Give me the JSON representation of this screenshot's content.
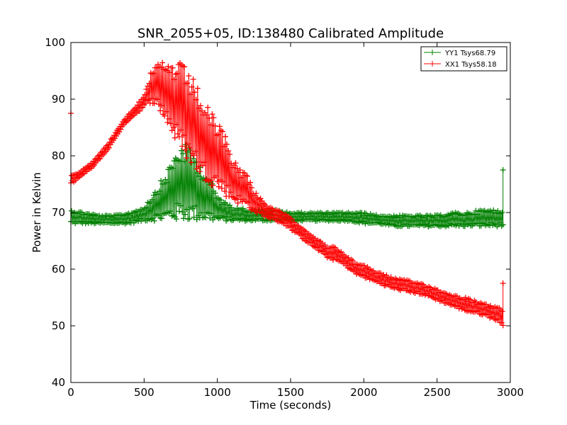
{
  "chart_data": {
    "type": "line",
    "title": "SNR_2055+05, ID:138480 Calibrated Amplitude",
    "xlabel": "Time (seconds)",
    "ylabel": "Power in Kelvin",
    "xlim": [
      0,
      3000
    ],
    "ylim": [
      40,
      100
    ],
    "xticks": [
      0,
      500,
      1000,
      1500,
      2000,
      2500,
      3000
    ],
    "yticks": [
      40,
      50,
      60,
      70,
      80,
      90,
      100
    ],
    "grid": false,
    "legend_position": "top-right",
    "marker": "plus",
    "series": [
      {
        "name": "YY1 Tsys68.79",
        "color": "#008000",
        "envelope_x": [
          0,
          100,
          200,
          300,
          400,
          500,
          550,
          600,
          650,
          700,
          750,
          800,
          850,
          900,
          950,
          1000,
          1050,
          1100,
          1150,
          1200,
          1300,
          1400,
          1500,
          1600,
          1700,
          1800,
          1900,
          2000,
          2100,
          2200,
          2300,
          2400,
          2500,
          2600,
          2700,
          2800,
          2900,
          2950
        ],
        "envelope_low": [
          68,
          68,
          68,
          68,
          68,
          68.5,
          68.5,
          68.5,
          68.5,
          68.5,
          68.5,
          68.5,
          68.5,
          68.5,
          68.5,
          68.5,
          68.5,
          68.5,
          68.5,
          68.5,
          68.5,
          68.5,
          68.5,
          68.5,
          68.5,
          68.5,
          68.5,
          68,
          68,
          67.5,
          67.5,
          67.5,
          67.5,
          67.5,
          67.5,
          67.5,
          67.5,
          67.5
        ],
        "envelope_high": [
          70.5,
          70,
          69.5,
          69.5,
          70,
          71,
          73,
          75,
          77,
          80,
          82,
          82,
          80,
          78,
          76,
          73,
          72,
          71,
          71,
          70.5,
          70.5,
          70.5,
          70,
          70,
          70,
          70,
          70,
          70,
          69.5,
          69.5,
          69.5,
          69.5,
          69.5,
          70,
          70,
          70.5,
          70.5,
          70.5
        ],
        "end_spike": [
          2950,
          77.5
        ]
      },
      {
        "name": "XX1 Tsys58.18",
        "color": "#ff0000",
        "envelope_x": [
          0,
          50,
          100,
          150,
          200,
          250,
          300,
          350,
          400,
          450,
          500,
          550,
          600,
          650,
          700,
          750,
          800,
          850,
          900,
          950,
          1000,
          1050,
          1100,
          1150,
          1200,
          1250,
          1300,
          1350,
          1400,
          1450,
          1500,
          1550,
          1600,
          1650,
          1700,
          1750,
          1800,
          1850,
          1900,
          1950,
          2000,
          2050,
          2100,
          2150,
          2200,
          2300,
          2400,
          2500,
          2600,
          2700,
          2800,
          2900,
          2950
        ],
        "envelope_low": [
          75,
          76,
          77,
          78,
          79.5,
          81,
          83,
          85,
          86.5,
          87.5,
          88.5,
          89.5,
          88,
          86,
          83,
          81,
          79,
          77.5,
          76,
          75,
          74,
          73,
          72,
          71.5,
          71,
          70,
          69.5,
          69,
          68.5,
          68,
          67,
          66,
          65,
          64,
          63,
          62,
          61.5,
          61,
          60,
          59,
          58.5,
          58,
          57.5,
          57,
          56.5,
          56,
          55.5,
          54.5,
          53.5,
          52.5,
          52,
          51,
          50
        ],
        "envelope_high": [
          77,
          77,
          78,
          79,
          80.5,
          82,
          84,
          86,
          87.5,
          89,
          91,
          95,
          96.5,
          96.5,
          96.5,
          96.5,
          95,
          93,
          90,
          88,
          86,
          84,
          80,
          78,
          77,
          74,
          72.5,
          71,
          70.5,
          70,
          69,
          68,
          67,
          66,
          65,
          64,
          64,
          63,
          62,
          61,
          61,
          60,
          59.5,
          59,
          58.5,
          58,
          57.5,
          56.5,
          55.5,
          55,
          54,
          53.5,
          53
        ],
        "start_spike": [
          0,
          87.5
        ],
        "end_spike": [
          2950,
          57.5
        ]
      }
    ]
  }
}
